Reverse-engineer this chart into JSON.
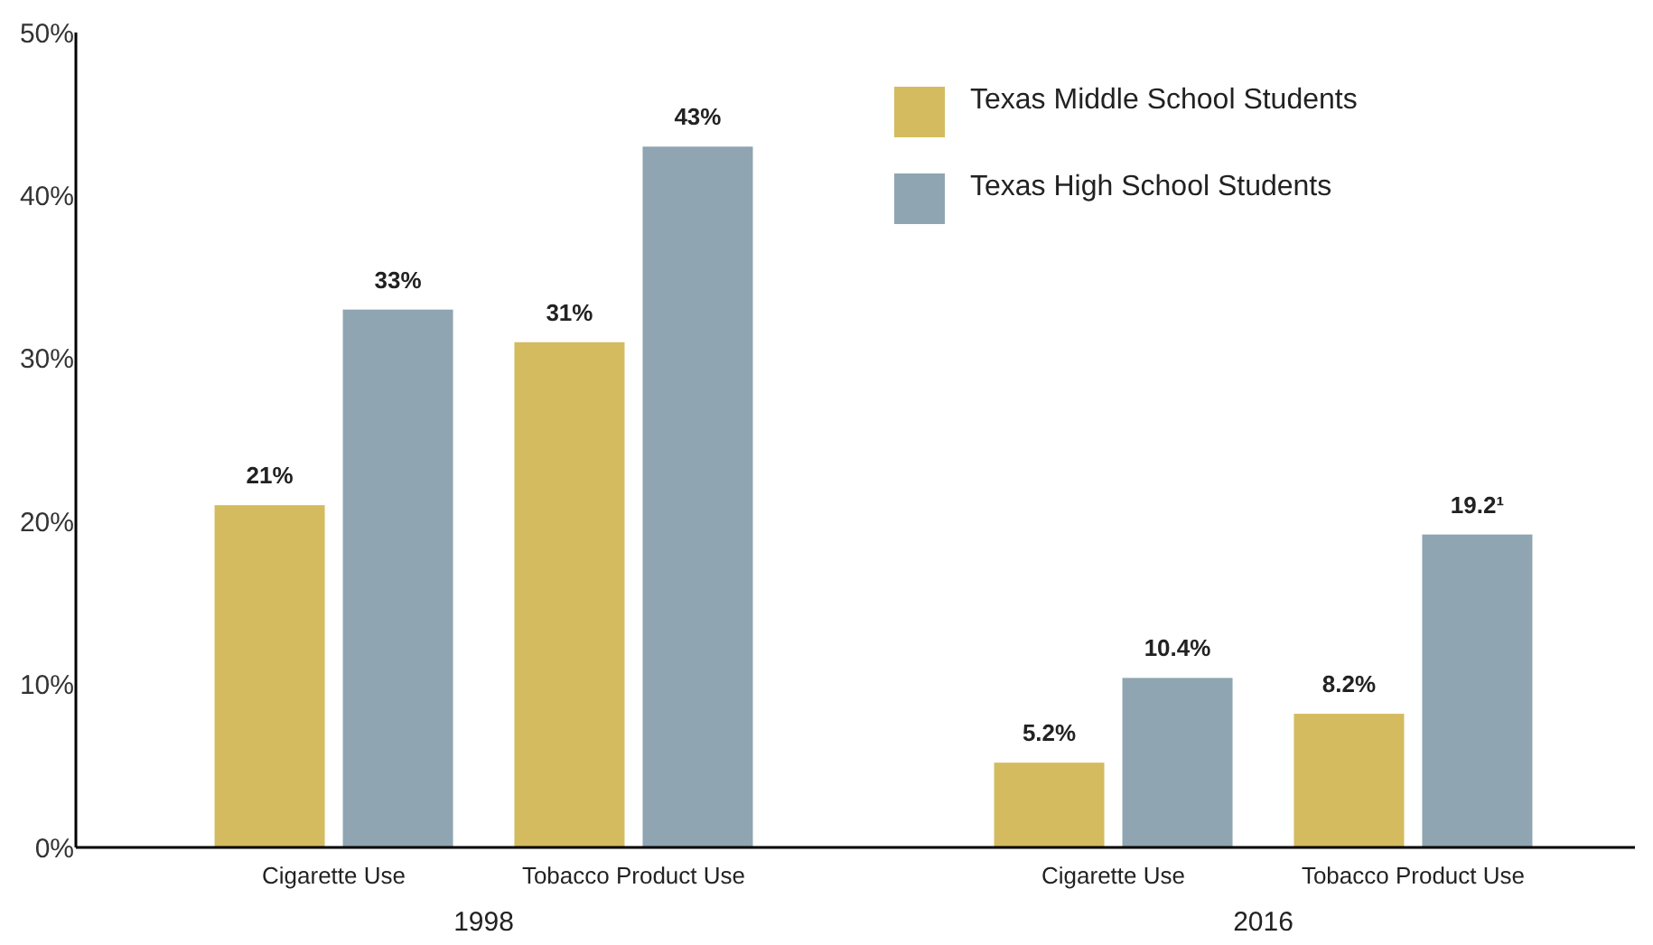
{
  "chart_data": {
    "type": "bar",
    "categories": [
      "Cigarette Use",
      "Tobacco Product Use",
      "Cigarette Use",
      "Tobacco Product Use"
    ],
    "series": [
      {
        "name": "Texas Middle School Students",
        "color": "#d4bb5f",
        "values": [
          21,
          31,
          5.2,
          8.2
        ],
        "value_labels": [
          "21%",
          "31%",
          "5.2%",
          "8.2%"
        ]
      },
      {
        "name": "Texas High School Students",
        "color": "#8fa5b1",
        "values": [
          33,
          43,
          10.4,
          19.2
        ],
        "value_labels": [
          "33%",
          "43%",
          "10.4%",
          "19.2¹"
        ]
      }
    ],
    "ylim": [
      0,
      50
    ],
    "yticks": [
      {
        "value": 0,
        "label": "0%"
      },
      {
        "value": 10,
        "label": "10%"
      },
      {
        "value": 20,
        "label": "20%"
      },
      {
        "value": 30,
        "label": "30%"
      },
      {
        "value": 40,
        "label": "40%"
      },
      {
        "value": 50,
        "label": "50%"
      }
    ],
    "annotations": [
      "1998",
      "2016"
    ],
    "legend": "top right",
    "grid": false
  }
}
